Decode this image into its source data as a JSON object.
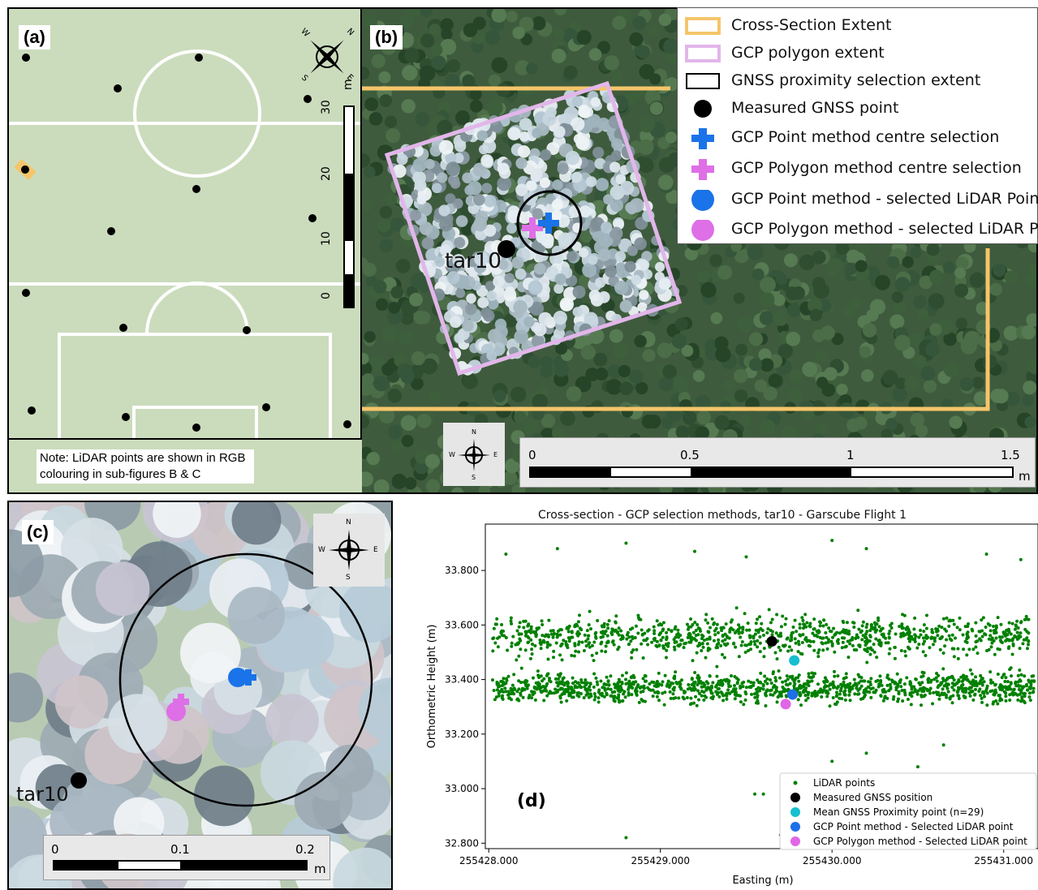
{
  "panel_a": {
    "tag": "(a)",
    "scale_unit": "m",
    "scale_ticks": [
      "0",
      "10",
      "20",
      "30"
    ],
    "compass_labels": {
      "n": "N",
      "e": "E",
      "s": "S",
      "w": "W"
    }
  },
  "note": {
    "text": "Note: LiDAR points are shown in RGB colouring in sub-figures B & C"
  },
  "panel_b": {
    "tag": "(b)",
    "target_label": "tar10",
    "legend": [
      {
        "label": "Cross-Section Extent",
        "symbol": "rect-outline",
        "color": "#f5c56a"
      },
      {
        "label": "GCP polygon extent",
        "symbol": "rect-outline",
        "color": "#e2b6ea"
      },
      {
        "label": "GNSS proximity selection extent",
        "symbol": "rect-outline",
        "color": "#000000"
      },
      {
        "label": "Measured GNSS point",
        "symbol": "circle",
        "color": "#000000"
      },
      {
        "label": "GCP Point method centre selection",
        "symbol": "cross",
        "color": "#1a73e8"
      },
      {
        "label": "GCP Polygon method centre selection",
        "symbol": "cross",
        "color": "#de6fe6"
      },
      {
        "label": "GCP Point method - selected LiDAR Point",
        "symbol": "circle",
        "color": "#1a73e8"
      },
      {
        "label": "GCP Polygon method - selected LiDAR Point",
        "symbol": "circle",
        "color": "#de6fe6"
      }
    ],
    "scale_ticks": [
      "0",
      "0.5",
      "1",
      "1.5"
    ],
    "scale_unit": "m",
    "compass_labels": {
      "n": "N",
      "e": "E",
      "s": "S",
      "w": "W"
    }
  },
  "panel_c": {
    "tag": "(c)",
    "target_label": "tar10",
    "scale_ticks": [
      "0",
      "0.1",
      "0.2"
    ],
    "scale_unit": "m",
    "compass_labels": {
      "n": "N",
      "e": "E",
      "s": "S",
      "w": "W"
    }
  },
  "chart_data": {
    "type": "scatter",
    "panel_tag": "(d)",
    "title": "Cross-section - GCP selection methods, tar10 - Garscube Flight 1",
    "xlabel": "Easting (m)",
    "ylabel": "Orthometric Height (m)",
    "xlim": [
      255427.98,
      255431.2
    ],
    "ylim": [
      32.78,
      33.97
    ],
    "xticks": [
      "255428.000",
      "255429.000",
      "255430.000",
      "255431.000"
    ],
    "xtick_values": [
      255428.0,
      255429.0,
      255430.0,
      255431.0
    ],
    "yticks": [
      "32.800",
      "33.000",
      "33.200",
      "33.400",
      "33.600",
      "33.800"
    ],
    "ytick_values": [
      32.8,
      33.0,
      33.2,
      33.4,
      33.6,
      33.8
    ],
    "series": [
      {
        "name": "LiDAR points",
        "color": "#008000",
        "marker": "small-dot",
        "description_range_x": [
          255428.02,
          255431.18
        ],
        "dense_band_y": [
          33.22,
          33.72
        ],
        "outliers": [
          [
            255428.1,
            33.86
          ],
          [
            255428.4,
            33.88
          ],
          [
            255428.8,
            33.9
          ],
          [
            255429.2,
            33.87
          ],
          [
            255429.5,
            33.85
          ],
          [
            255430.0,
            33.91
          ],
          [
            255430.2,
            33.88
          ],
          [
            255430.9,
            33.86
          ],
          [
            255431.1,
            33.84
          ],
          [
            255429.6,
            32.98
          ],
          [
            255429.55,
            32.98
          ],
          [
            255428.8,
            32.82
          ],
          [
            255429.7,
            32.83
          ],
          [
            255430.0,
            33.1
          ],
          [
            255430.2,
            33.13
          ],
          [
            255430.3,
            33.05
          ],
          [
            255430.5,
            33.08
          ],
          [
            255430.65,
            33.16
          ]
        ]
      },
      {
        "name": "Measured GNSS position",
        "color": "#000000",
        "points": [
          [
            255429.65,
            33.54
          ]
        ]
      },
      {
        "name": "Mean GNSS Proximity point (n=29)",
        "color": "#17becf",
        "points": [
          [
            255429.78,
            33.47
          ]
        ]
      },
      {
        "name": "GCP Point method - Selected LiDAR point",
        "color": "#1f6fe8",
        "points": [
          [
            255429.77,
            33.345
          ]
        ]
      },
      {
        "name": "GCP Polygon method - Selected LiDAR point",
        "color": "#e066e6",
        "points": [
          [
            255429.73,
            33.31
          ]
        ]
      }
    ],
    "legend_position": "bottom-right"
  }
}
